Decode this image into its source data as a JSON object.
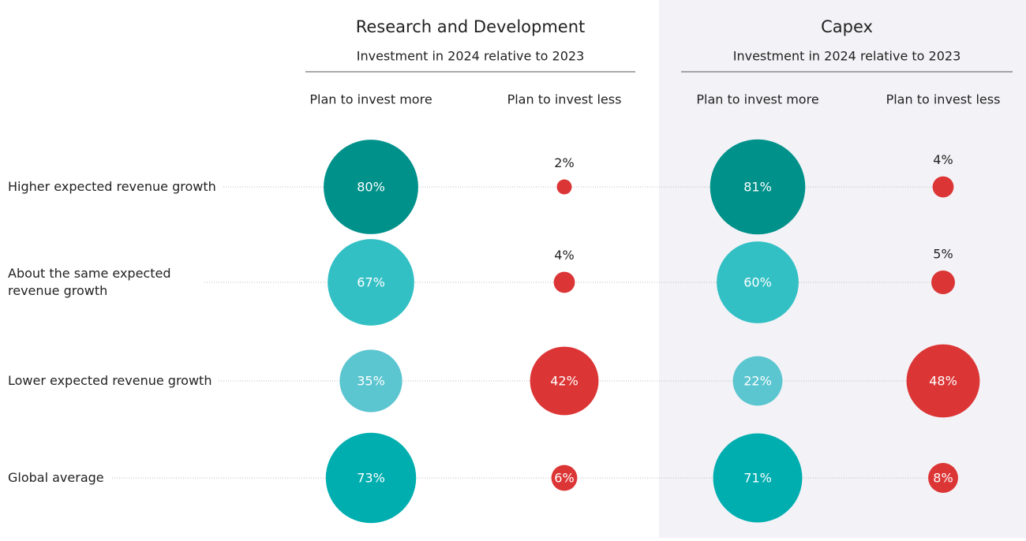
{
  "chart_data": {
    "type": "bubble",
    "categories": [
      "Higher expected revenue growth",
      "About the same expected revenue growth",
      "Lower expected revenue growth",
      "Global average"
    ],
    "groups": [
      {
        "title": "Research and Development",
        "subtitle": "Investment in 2024 relative to 2023",
        "series": [
          {
            "name": "Plan to invest more",
            "colors": [
              "#00918a",
              "#33c0c4",
              "#5bc5d0",
              "#00aeb0"
            ],
            "values": [
              80,
              67,
              35,
              73
            ],
            "value_labels": [
              "80%",
              "67%",
              "35%",
              "73%"
            ]
          },
          {
            "name": "Plan to invest less",
            "colors": [
              "#dc3535",
              "#dc3535",
              "#dc3535",
              "#dc3535"
            ],
            "values": [
              2,
              4,
              42,
              6
            ],
            "value_labels": [
              "2%",
              "4%",
              "42%",
              "6%"
            ]
          }
        ]
      },
      {
        "title": "Capex",
        "subtitle": "Investment in 2024 relative to 2023",
        "shaded": true,
        "series": [
          {
            "name": "Plan to invest more",
            "colors": [
              "#00918a",
              "#33c0c4",
              "#5bc5d0",
              "#00aeb0"
            ],
            "values": [
              81,
              60,
              22,
              71
            ],
            "value_labels": [
              "81%",
              "60%",
              "22%",
              "71%"
            ]
          },
          {
            "name": "Plan to invest less",
            "colors": [
              "#dc3535",
              "#dc3535",
              "#dc3535",
              "#dc3535"
            ],
            "values": [
              4,
              5,
              48,
              8
            ],
            "value_labels": [
              "4%",
              "5%",
              "48%",
              "8%"
            ]
          }
        ]
      }
    ]
  }
}
